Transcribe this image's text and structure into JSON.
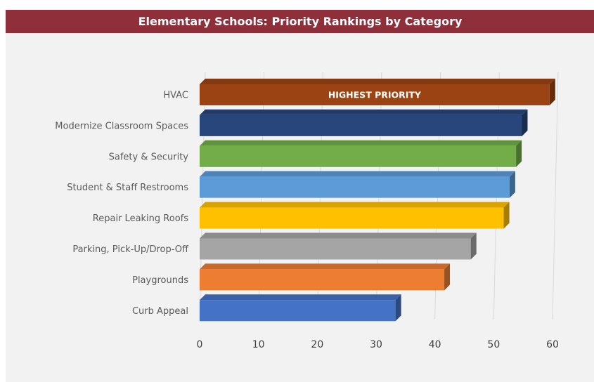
{
  "title": "Elementary Schools: Priority Rankings by Category",
  "chart_data": {
    "type": "bar",
    "orientation": "horizontal",
    "title": "Elementary Schools: Priority Rankings by Category",
    "xlabel": "",
    "ylabel": "",
    "xlim": [
      0,
      60
    ],
    "x_ticks": [
      "0",
      "10",
      "20",
      "30",
      "40",
      "50",
      "60"
    ],
    "grid": true,
    "categories": [
      "HVAC",
      "Modernize Classroom Spaces",
      "Safety & Security",
      "Student & Staff Restrooms",
      "Repair Leaking Roofs",
      "Parking, Pick-Up/Drop-Off",
      "Playgrounds",
      "Curb Appeal"
    ],
    "values": [
      59.5,
      54.8,
      53.8,
      52.7,
      51.7,
      46.1,
      41.6,
      33.3
    ],
    "colors": [
      "#9c4313",
      "#28457c",
      "#72ad47",
      "#5c9bd6",
      "#ffc000",
      "#a5a5a5",
      "#ed7d31",
      "#4472c4"
    ],
    "annotation": {
      "category": "HVAC",
      "text": "HIGHEST PRIORITY"
    }
  }
}
